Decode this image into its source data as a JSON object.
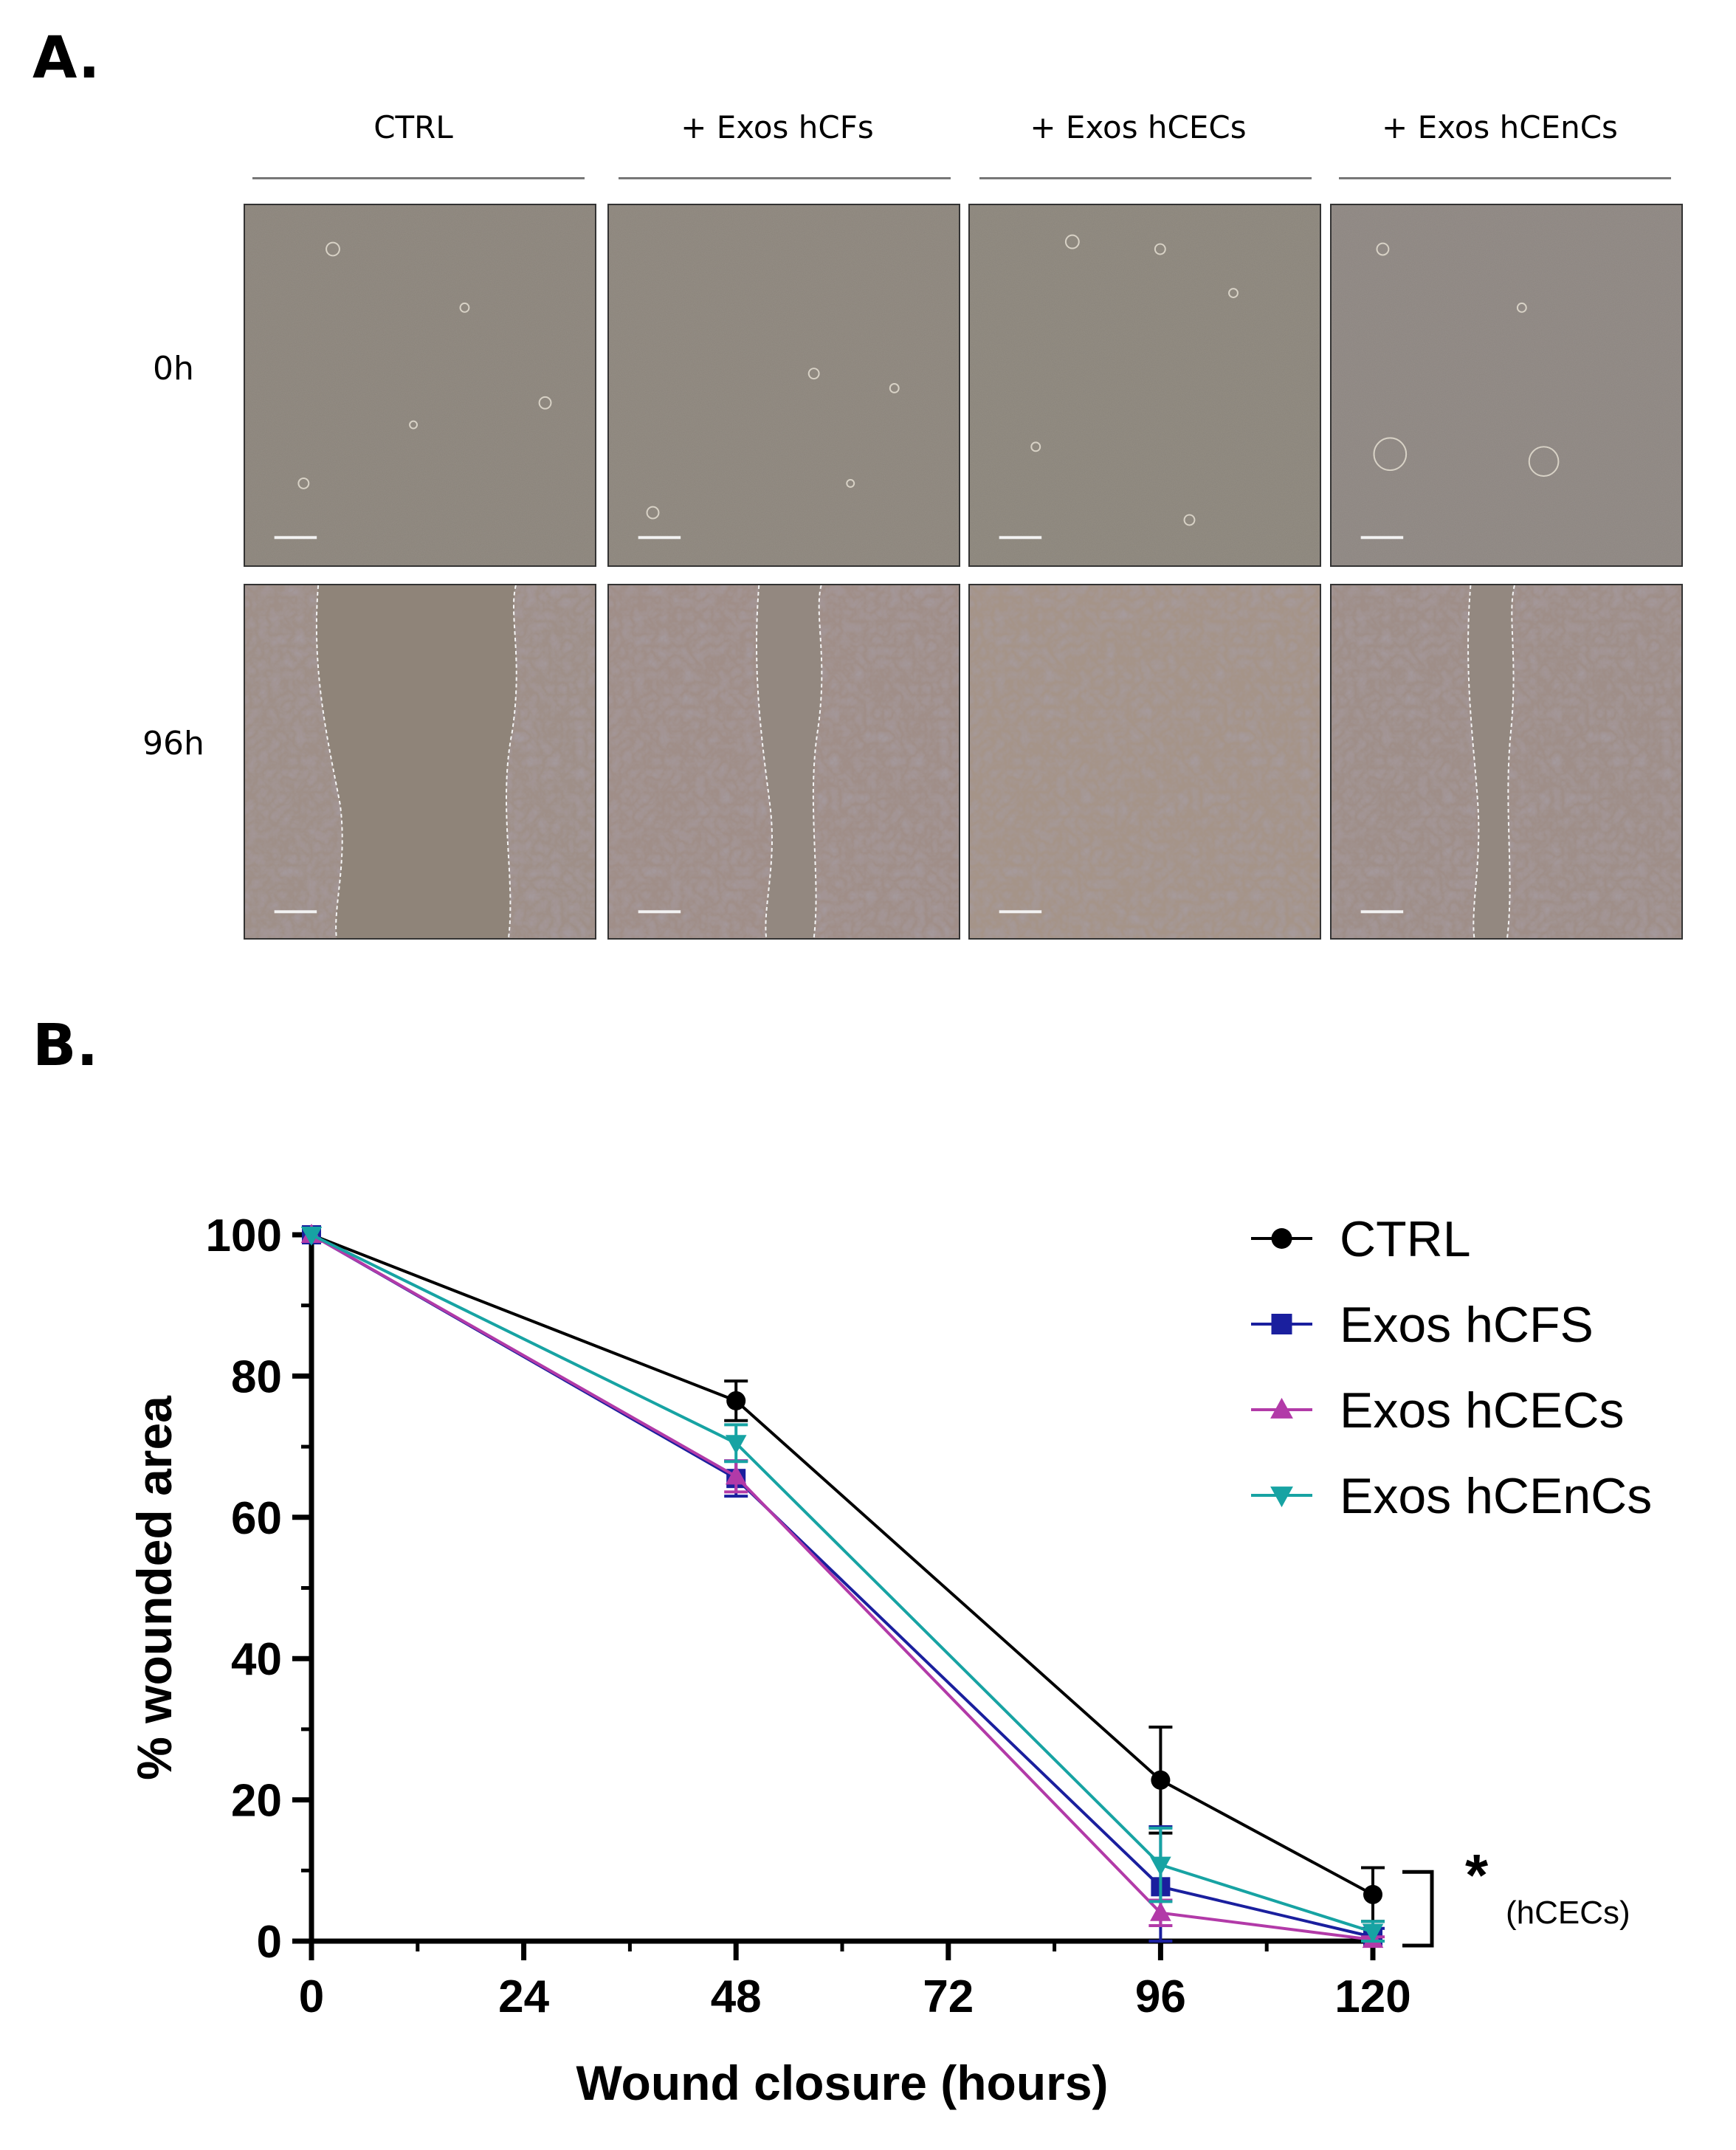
{
  "panel_a": {
    "label": "A.",
    "columns": [
      "CTRL",
      "+ Exos hCFs",
      "+ Exos hCECs",
      "+ Exos hCEnCs"
    ],
    "rows": [
      "0h",
      "96h"
    ]
  },
  "panel_b": {
    "label": "B."
  },
  "chart_data": {
    "type": "line",
    "xlabel": "Wound closure (hours)",
    "ylabel": "% wounded area",
    "xlim": [
      0,
      120
    ],
    "ylim": [
      0,
      100
    ],
    "x_ticks": [
      0,
      24,
      48,
      72,
      96,
      120
    ],
    "y_ticks": [
      0,
      20,
      40,
      60,
      80,
      100
    ],
    "x": [
      0,
      48,
      96,
      120
    ],
    "grid": false,
    "legend_position": "top-right",
    "series": [
      {
        "name": "CTRL",
        "marker": "circle",
        "color": "#000000",
        "values": [
          100,
          76.5,
          22.8,
          6.6
        ],
        "error": [
          0,
          2.8,
          7.5,
          3.8
        ]
      },
      {
        "name": "Exos hCFS",
        "marker": "square",
        "color": "#1a1f9e",
        "values": [
          100,
          65.5,
          7.7,
          0.6
        ],
        "error": [
          0,
          2.5,
          8.5,
          1.2
        ]
      },
      {
        "name": "Exos hCECs",
        "marker": "triangle-up",
        "color": "#b23aa8",
        "values": [
          100,
          65.8,
          4.0,
          0.2
        ],
        "error": [
          0,
          2.2,
          1.8,
          0.4
        ]
      },
      {
        "name": "Exos hCEnCs",
        "marker": "triangle-down",
        "color": "#17a3a3",
        "values": [
          100,
          70.5,
          10.8,
          1.3
        ],
        "error": [
          0,
          2.6,
          5.2,
          1.5
        ]
      }
    ],
    "annotation": {
      "star": "*",
      "text": "(hCECs)"
    }
  }
}
